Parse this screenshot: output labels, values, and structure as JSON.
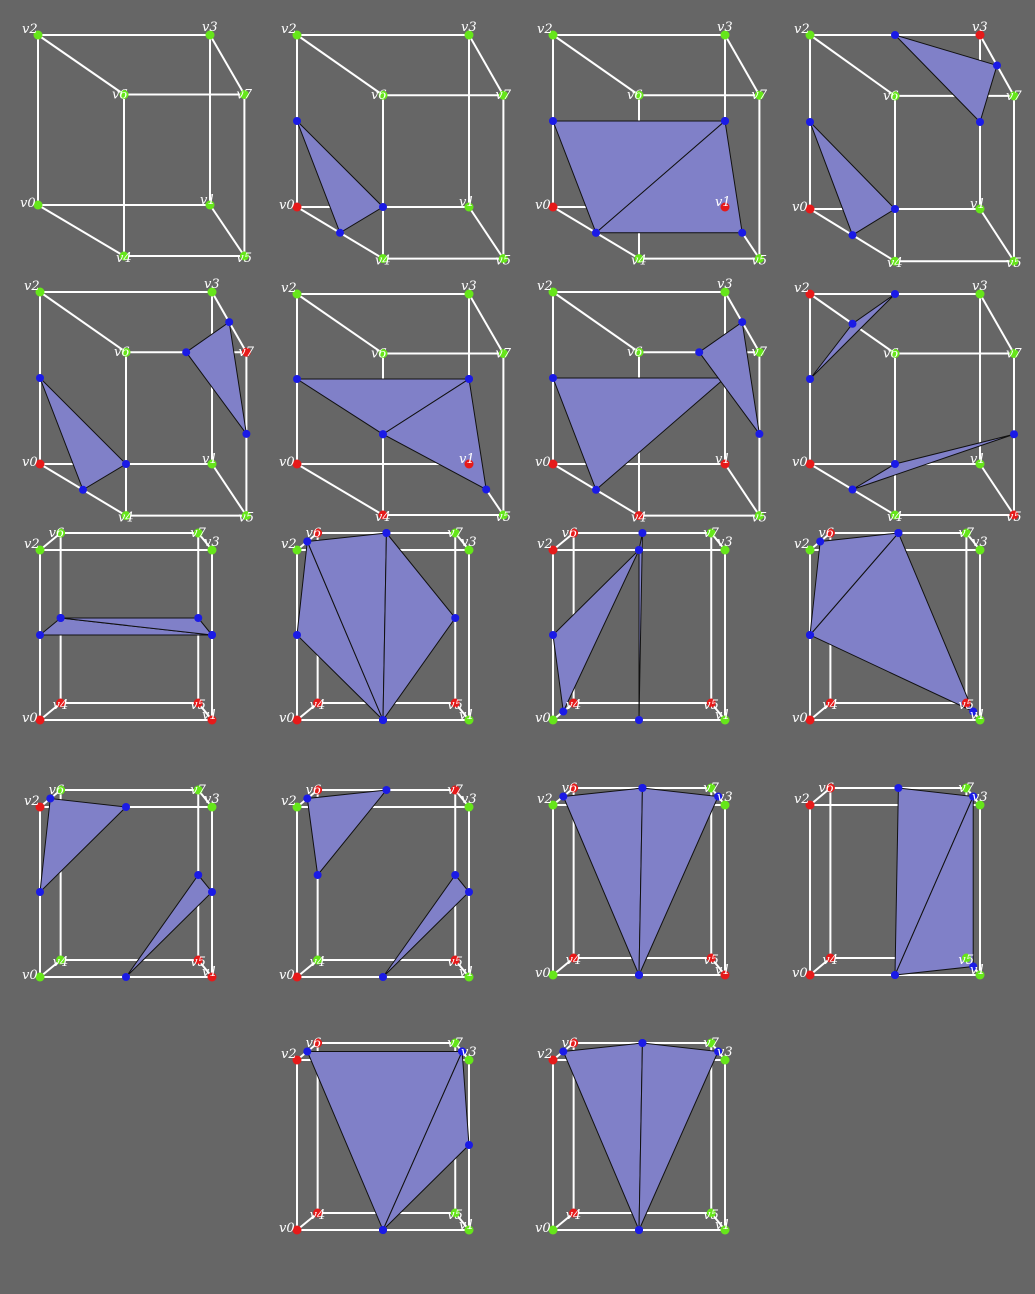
{
  "title": "",
  "colors": {
    "background": "#666666",
    "edge": "#ffffff",
    "outside_vertex": "#66e61a",
    "inside_vertex": "#e61a1a",
    "intersection_point": "#1a1ae6",
    "triangle_fill": "#8080c8",
    "triangle_stroke": "#111111"
  },
  "vertex_labels": [
    "v0",
    "v1",
    "v2",
    "v3",
    "v4",
    "v5",
    "v6",
    "v7"
  ],
  "legend": [],
  "diagram_data": {
    "type": "marching-cubes-cases",
    "case_count": 18,
    "cases": [
      {
        "inside": []
      },
      {
        "inside": [
          "v0"
        ]
      },
      {
        "inside": [
          "v0",
          "v1"
        ]
      },
      {
        "inside": [
          "v0",
          "v3"
        ]
      },
      {
        "inside": [
          "v0",
          "v7"
        ]
      },
      {
        "inside": [
          "v0",
          "v1",
          "v4"
        ]
      },
      {
        "inside": [
          "v0",
          "v1",
          "v4"
        ]
      },
      {
        "inside": [
          "v2",
          "v0",
          "v5"
        ]
      },
      {
        "inside": [
          "v0",
          "v1",
          "v4",
          "v5"
        ]
      },
      {
        "inside": [
          "v0",
          "v4",
          "v5",
          "v6"
        ]
      },
      {
        "inside": [
          "v2",
          "v4",
          "v5",
          "v6"
        ]
      },
      {
        "inside": [
          "v4",
          "v5",
          "v6",
          "v0"
        ]
      },
      {
        "inside": [
          "v2",
          "v1",
          "v5"
        ]
      },
      {
        "inside": [
          "v6",
          "v0",
          "v5",
          "v7"
        ]
      },
      {
        "inside": [
          "v6",
          "v4",
          "v1",
          "v5"
        ]
      },
      {
        "inside": [
          "v6",
          "v4",
          "v0",
          "v2"
        ]
      },
      {
        "inside": [
          "v0",
          "v2",
          "v6",
          "v4"
        ]
      },
      {
        "inside": [
          "v2",
          "v6",
          "v4"
        ]
      }
    ]
  }
}
